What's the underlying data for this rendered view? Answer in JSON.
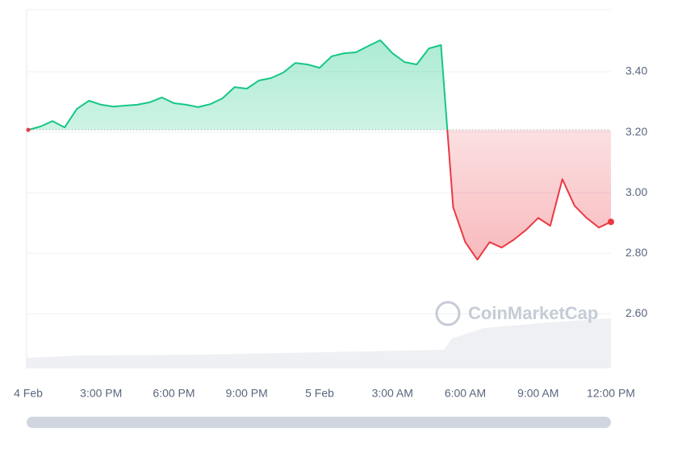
{
  "chart_data": {
    "type": "line",
    "watermark": "CoinMarketCap",
    "x": [
      "4 Feb 12:00 PM",
      "4 Feb 12:30 PM",
      "4 Feb 1:00 PM",
      "4 Feb 1:30 PM",
      "4 Feb 2:00 PM",
      "4 Feb 2:30 PM",
      "4 Feb 3:00 PM",
      "4 Feb 3:30 PM",
      "4 Feb 4:00 PM",
      "4 Feb 4:30 PM",
      "4 Feb 5:00 PM",
      "4 Feb 5:30 PM",
      "4 Feb 6:00 PM",
      "4 Feb 6:30 PM",
      "4 Feb 7:00 PM",
      "4 Feb 7:30 PM",
      "4 Feb 8:00 PM",
      "4 Feb 8:30 PM",
      "4 Feb 9:00 PM",
      "4 Feb 9:30 PM",
      "4 Feb 10:00 PM",
      "4 Feb 10:30 PM",
      "4 Feb 11:00 PM",
      "4 Feb 11:30 PM",
      "5 Feb 12:00 AM",
      "5 Feb 12:30 AM",
      "5 Feb 1:00 AM",
      "5 Feb 1:30 AM",
      "5 Feb 2:00 AM",
      "5 Feb 2:30 AM",
      "5 Feb 3:00 AM",
      "5 Feb 3:30 AM",
      "5 Feb 4:00 AM",
      "5 Feb 4:30 AM",
      "5 Feb 5:00 AM",
      "5 Feb 5:30 AM",
      "5 Feb 6:00 AM",
      "5 Feb 6:30 AM",
      "5 Feb 7:00 AM",
      "5 Feb 7:30 AM",
      "5 Feb 8:00 AM",
      "5 Feb 8:30 AM",
      "5 Feb 9:00 AM",
      "5 Feb 9:30 AM",
      "5 Feb 10:00 AM",
      "5 Feb 10:30 AM",
      "5 Feb 11:00 AM",
      "5 Feb 11:30 AM",
      "5 Feb 12:00 PM"
    ],
    "values": [
      3.208,
      3.219,
      3.237,
      3.216,
      3.277,
      3.304,
      3.291,
      3.285,
      3.288,
      3.291,
      3.299,
      3.315,
      3.296,
      3.291,
      3.283,
      3.293,
      3.312,
      3.349,
      3.344,
      3.371,
      3.379,
      3.397,
      3.429,
      3.424,
      3.413,
      3.451,
      3.461,
      3.464,
      3.485,
      3.504,
      3.461,
      3.432,
      3.424,
      3.477,
      3.488,
      2.952,
      2.837,
      2.779,
      2.837,
      2.819,
      2.845,
      2.877,
      2.917,
      2.891,
      3.045,
      2.957,
      2.917,
      2.885,
      2.904
    ],
    "baseline": 3.208,
    "up_color": "#16c784",
    "down_color": "#ea3943",
    "ylim": [
      2.42,
      3.605
    ],
    "yticks": [
      {
        "value": 2.6,
        "label": "2.60"
      },
      {
        "value": 2.8,
        "label": "2.80"
      },
      {
        "value": 3.0,
        "label": "3.00"
      },
      {
        "value": 3.2,
        "label": "3.20"
      },
      {
        "value": 3.4,
        "label": "3.40"
      }
    ],
    "xticks": [
      {
        "value": "4 Feb 12:00 PM",
        "label": "4 Feb"
      },
      {
        "value": "4 Feb 3:00 PM",
        "label": "3:00 PM"
      },
      {
        "value": "4 Feb 6:00 PM",
        "label": "6:00 PM"
      },
      {
        "value": "4 Feb 9:00 PM",
        "label": "9:00 PM"
      },
      {
        "value": "5 Feb 12:00 AM",
        "label": "5 Feb"
      },
      {
        "value": "5 Feb 3:00 AM",
        "label": "3:00 AM"
      },
      {
        "value": "5 Feb 6:00 AM",
        "label": "6:00 AM"
      },
      {
        "value": "5 Feb 9:00 AM",
        "label": "9:00 AM"
      },
      {
        "value": "5 Feb 12:00 PM",
        "label": "12:00 PM"
      }
    ],
    "grid": true
  }
}
